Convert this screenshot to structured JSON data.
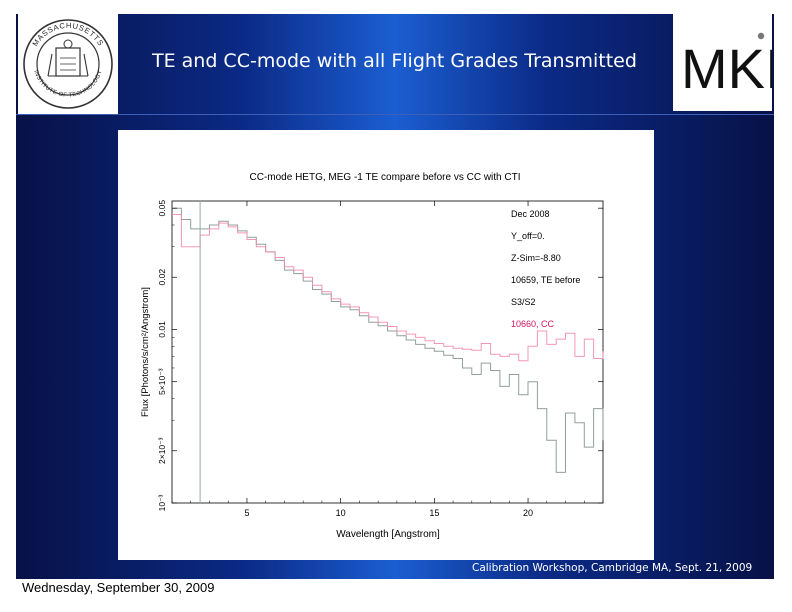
{
  "slide": {
    "title": "TE and CC-mode with all Flight Grades Transmitted",
    "footer": "Calibration Workshop, Cambridge MA, Sept. 21, 2009",
    "date": "Wednesday, September 30, 2009",
    "logo_text": "MKI",
    "seal_text_top": "MASSACHUSETTS",
    "seal_text_bottom": "INSTITUTE OF TECHNOLOGY"
  },
  "colors": {
    "background_dark": "#071146",
    "background_light": "#1b5ed2",
    "series_te": "#8a9a96",
    "series_cc": "#f28cb1",
    "cc_legend_text": "#d4145a"
  },
  "chart_data": {
    "type": "line",
    "title": "CC-mode HETG, MEG -1 TE compare before vs CC with CTI",
    "xlabel": "Wavelength [Angstrom]",
    "ylabel": "Flux [Photons/s/cm²/Angstrom]",
    "xlim": [
      1.0,
      24.0
    ],
    "ylim": [
      0.001,
      0.055
    ],
    "yscale": "log",
    "xticks": [
      5,
      10,
      15,
      20
    ],
    "xtick_labels": [
      "5",
      "10",
      "15",
      "20"
    ],
    "yticks": [
      0.001,
      0.002,
      0.005,
      0.01,
      0.02,
      0.05
    ],
    "ytick_labels": [
      "10⁻³",
      "2×10⁻³",
      "5×10⁻³",
      "0.01",
      "0.02",
      "0.05"
    ],
    "vertical_line_x": 2.5,
    "grid": false,
    "legend_position": "top-right",
    "annotations": [
      "Dec 2008",
      "Y_off=0.",
      "Z-Sim=-8.80",
      "10659, TE before",
      "S3/S2",
      "10660, CC"
    ],
    "series": [
      {
        "label": "10659, TE before",
        "color": "#8a9a96",
        "x": [
          1.0,
          1.5,
          2.0,
          2.5,
          3.0,
          3.5,
          4.0,
          4.5,
          5.0,
          5.5,
          6.0,
          6.5,
          7.0,
          7.5,
          8.0,
          8.5,
          9.0,
          9.5,
          10.0,
          10.5,
          11.0,
          11.5,
          12.0,
          12.5,
          13.0,
          13.5,
          14.0,
          14.5,
          15.0,
          15.5,
          16.0,
          16.5,
          17.0,
          17.5,
          18.0,
          18.5,
          19.0,
          19.5,
          20.0,
          20.5,
          21.0,
          21.5,
          22.0,
          22.5,
          23.0,
          23.5,
          24.0
        ],
        "y": [
          0.05,
          0.043,
          0.038,
          0.038,
          0.04,
          0.042,
          0.04,
          0.037,
          0.034,
          0.031,
          0.028,
          0.025,
          0.022,
          0.021,
          0.019,
          0.017,
          0.016,
          0.0145,
          0.0135,
          0.013,
          0.012,
          0.011,
          0.0105,
          0.0098,
          0.0092,
          0.0087,
          0.0082,
          0.0078,
          0.0075,
          0.0071,
          0.0068,
          0.006,
          0.0055,
          0.0064,
          0.0058,
          0.0047,
          0.0055,
          0.0042,
          0.005,
          0.0035,
          0.0023,
          0.0015,
          0.0033,
          0.0029,
          0.0021,
          0.0035,
          0.0023
        ]
      },
      {
        "label": "10660, CC",
        "color": "#f28cb1",
        "x": [
          1.0,
          1.5,
          2.0,
          2.5,
          3.0,
          3.5,
          4.0,
          4.5,
          5.0,
          5.5,
          6.0,
          6.5,
          7.0,
          7.5,
          8.0,
          8.5,
          9.0,
          9.5,
          10.0,
          10.5,
          11.0,
          11.5,
          12.0,
          12.5,
          13.0,
          13.5,
          14.0,
          14.5,
          15.0,
          15.5,
          16.0,
          16.5,
          17.0,
          17.5,
          18.0,
          18.5,
          19.0,
          19.5,
          20.0,
          20.5,
          21.0,
          21.5,
          22.0,
          22.5,
          23.0,
          23.5,
          24.0
        ],
        "y": [
          0.046,
          0.03,
          0.03,
          0.035,
          0.038,
          0.041,
          0.039,
          0.036,
          0.033,
          0.03,
          0.028,
          0.026,
          0.023,
          0.022,
          0.02,
          0.018,
          0.0165,
          0.015,
          0.014,
          0.0135,
          0.0125,
          0.0118,
          0.011,
          0.0104,
          0.0098,
          0.0094,
          0.009,
          0.0086,
          0.0083,
          0.008,
          0.0078,
          0.0077,
          0.0076,
          0.0083,
          0.0072,
          0.007,
          0.0072,
          0.0066,
          0.008,
          0.0098,
          0.0082,
          0.0088,
          0.0095,
          0.007,
          0.0088,
          0.0068,
          0.0075
        ]
      }
    ]
  }
}
